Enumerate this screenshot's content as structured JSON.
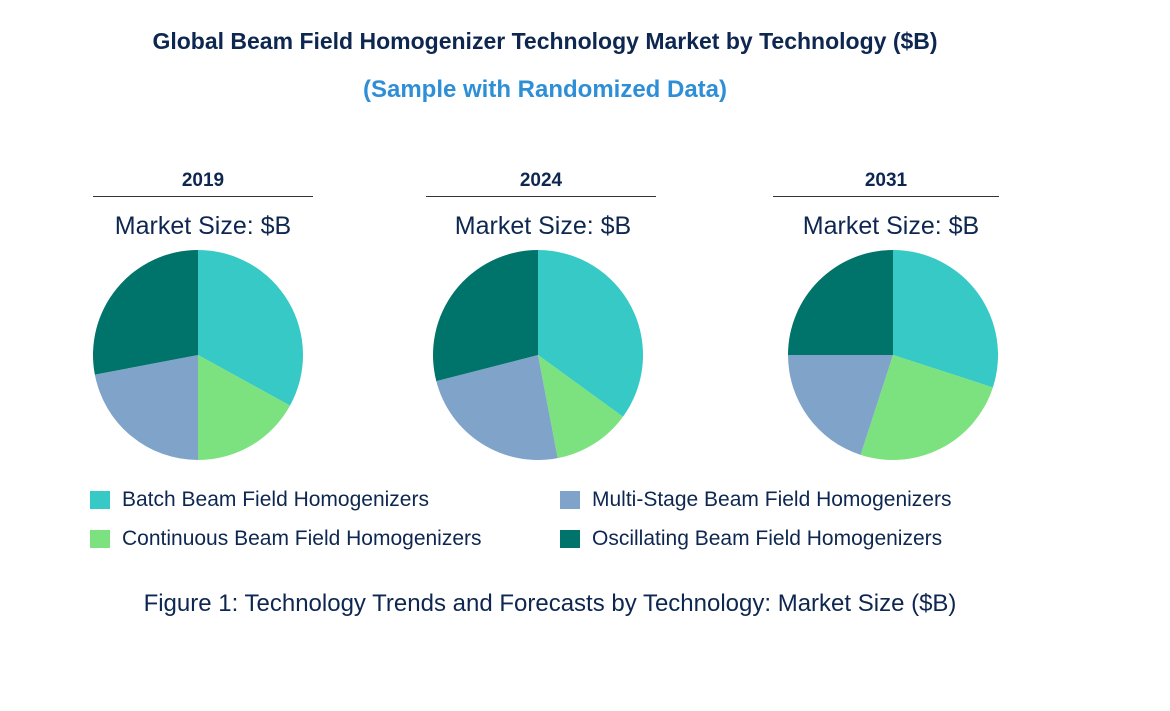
{
  "title": "Global Beam Field Homogenizer Technology Market by  Technology ($B)",
  "subtitle": "(Sample with Randomized Data)",
  "caption": "Figure 1: Technology Trends and Forecasts by Technology: Market Size ($B)",
  "chart_data": [
    {
      "type": "pie",
      "title": "2019",
      "subtitle": "Market Size: $B",
      "categories": [
        "Batch Beam Field Homogenizers",
        "Continuous Beam Field Homogenizers",
        "Multi-Stage Beam Field Homogenizers",
        "Oscillating Beam Field Homogenizers"
      ],
      "values": [
        33,
        17,
        22,
        28
      ]
    },
    {
      "type": "pie",
      "title": "2024",
      "subtitle": "Market Size: $B",
      "categories": [
        "Batch Beam Field Homogenizers",
        "Continuous Beam Field Homogenizers",
        "Multi-Stage Beam Field Homogenizers",
        "Oscillating Beam Field Homogenizers"
      ],
      "values": [
        35,
        12,
        24,
        29
      ]
    },
    {
      "type": "pie",
      "title": "2031",
      "subtitle": "Market Size: $B",
      "categories": [
        "Batch Beam Field Homogenizers",
        "Continuous Beam Field Homogenizers",
        "Multi-Stage Beam Field Homogenizers",
        "Oscillating Beam Field Homogenizers"
      ],
      "values": [
        30,
        25,
        20,
        25
      ]
    }
  ],
  "legend": [
    {
      "label": "Batch Beam Field Homogenizers",
      "color": "#36c9c5"
    },
    {
      "label": "Continuous Beam Field Homogenizers",
      "color": "#7be27f"
    },
    {
      "label": "Multi-Stage Beam Field Homogenizers",
      "color": "#7fa3c9"
    },
    {
      "label": "Oscillating Beam Field Homogenizers",
      "color": "#00736a"
    }
  ]
}
